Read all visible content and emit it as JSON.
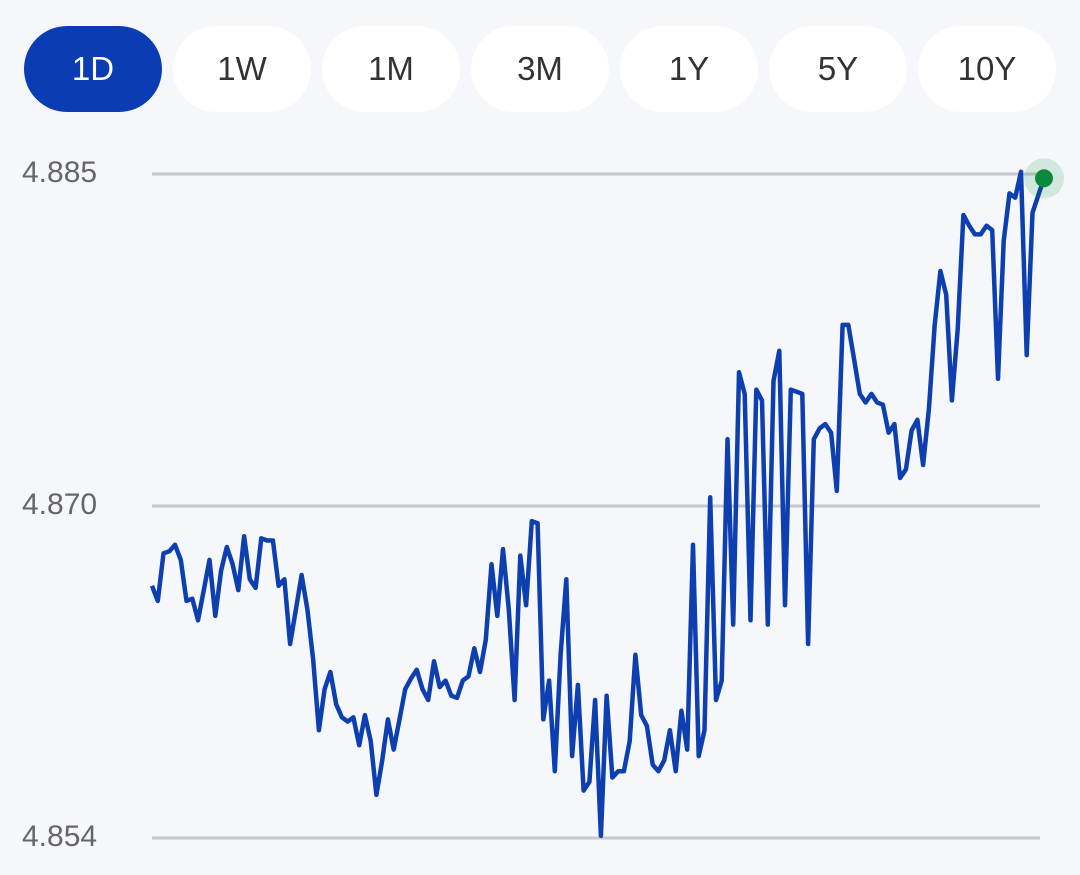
{
  "tabs": [
    {
      "label": "1D",
      "selected": true
    },
    {
      "label": "1W",
      "selected": false
    },
    {
      "label": "1M",
      "selected": false
    },
    {
      "label": "3M",
      "selected": false
    },
    {
      "label": "1Y",
      "selected": false
    },
    {
      "label": "5Y",
      "selected": false
    },
    {
      "label": "10Y",
      "selected": false
    }
  ],
  "chart_data": {
    "type": "line",
    "color": "#0d3fb0",
    "end_marker_color": "#0b8a3c",
    "grid": true,
    "ylim": [
      4.8544,
      4.8852
    ],
    "yticks": [
      {
        "value": 4.8852,
        "label": "4.885"
      },
      {
        "value": 4.8698,
        "label": "4.870"
      },
      {
        "value": 4.8544,
        "label": "4.854"
      }
    ],
    "values": [
      4.8661,
      4.8654,
      4.8676,
      4.8677,
      4.868,
      4.8673,
      4.8654,
      4.8655,
      4.8645,
      4.8659,
      4.8673,
      4.8647,
      4.8668,
      4.8679,
      4.8671,
      4.8659,
      4.8684,
      4.8664,
      4.866,
      4.8683,
      4.8682,
      4.8682,
      4.8661,
      4.8664,
      4.8634,
      4.865,
      4.8666,
      4.865,
      4.8627,
      4.8594,
      4.8613,
      4.8621,
      4.8606,
      4.86,
      4.8598,
      4.86,
      4.8587,
      4.8601,
      4.8589,
      4.8564,
      4.858,
      4.8599,
      4.8585,
      4.8599,
      4.8613,
      4.8618,
      4.8622,
      4.8613,
      4.8608,
      4.8626,
      4.8614,
      4.8617,
      4.861,
      4.8609,
      4.8617,
      4.8619,
      4.8632,
      4.8621,
      4.8636,
      4.8671,
      4.8647,
      4.8678,
      4.865,
      4.8608,
      4.8675,
      4.8652,
      4.8691,
      4.869,
      4.8599,
      4.8617,
      4.8575,
      4.8629,
      4.8664,
      4.8582,
      4.8615,
      4.8566,
      4.857,
      4.8608,
      4.8545,
      4.861,
      4.8572,
      4.8575,
      4.8575,
      4.8589,
      4.8629,
      4.8601,
      4.8596,
      4.8578,
      4.8575,
      4.858,
      4.8594,
      4.8575,
      4.8603,
      4.8585,
      4.868,
      4.8582,
      4.8594,
      4.8702,
      4.8608,
      4.8617,
      4.8729,
      4.8643,
      4.876,
      4.875,
      4.8645,
      4.8752,
      4.8747,
      4.8643,
      4.8756,
      4.877,
      4.8652,
      4.8752,
      4.8751,
      4.875,
      4.8634,
      4.8729,
      4.8734,
      4.8736,
      4.8732,
      4.8705,
      4.8782,
      4.8782,
      4.8766,
      4.875,
      4.8746,
      4.875,
      4.8746,
      4.8745,
      4.8732,
      4.8736,
      4.8711,
      4.8715,
      4.8733,
      4.8738,
      4.8717,
      4.8743,
      4.8782,
      4.8807,
      4.8796,
      4.8747,
      4.878,
      4.8833,
      4.8828,
      4.8824,
      4.8824,
      4.8828,
      4.8826,
      4.8757,
      4.8821,
      4.8843,
      4.8841,
      4.8853,
      4.8768,
      4.8834,
      4.8842,
      4.885
    ]
  }
}
